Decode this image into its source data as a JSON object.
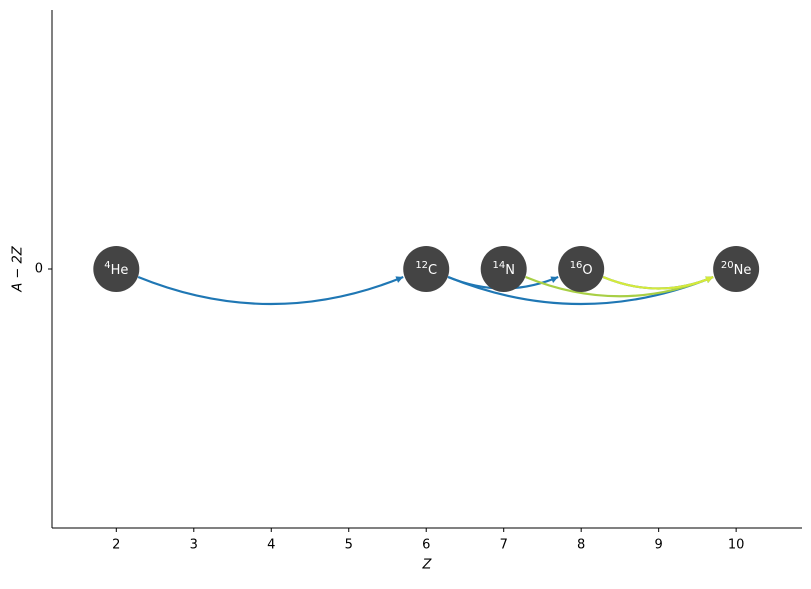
{
  "chart_data": {
    "type": "network",
    "xlabel": "Z",
    "ylabel": "A − 2Z",
    "xlim": [
      1.17,
      10.85
    ],
    "ylim": [
      -1,
      1
    ],
    "xticks": [
      2,
      3,
      4,
      5,
      6,
      7,
      8,
      9,
      10
    ],
    "yticks": [
      0
    ],
    "node_color": "#444444",
    "nodes": [
      {
        "mass": "4",
        "symbol": "He",
        "x": 2,
        "y": 0
      },
      {
        "mass": "12",
        "symbol": "C",
        "x": 6,
        "y": 0
      },
      {
        "mass": "14",
        "symbol": "N",
        "x": 7,
        "y": 0
      },
      {
        "mass": "16",
        "symbol": "O",
        "x": 8,
        "y": 0
      },
      {
        "mass": "20",
        "symbol": "Ne",
        "x": 10,
        "y": 0
      }
    ],
    "links": [
      {
        "source": 0,
        "target": 1,
        "color": "#1f77b4"
      },
      {
        "source": 1,
        "target": 3,
        "color": "#1f77b4"
      },
      {
        "source": 1,
        "target": 4,
        "color": "#1f77b4"
      },
      {
        "source": 3,
        "target": 4,
        "color": "#1f77b4"
      },
      {
        "source": 2,
        "target": 4,
        "color": "#a8cf45"
      },
      {
        "source": 3,
        "target": 4,
        "color": "#d6ea3a"
      }
    ]
  }
}
